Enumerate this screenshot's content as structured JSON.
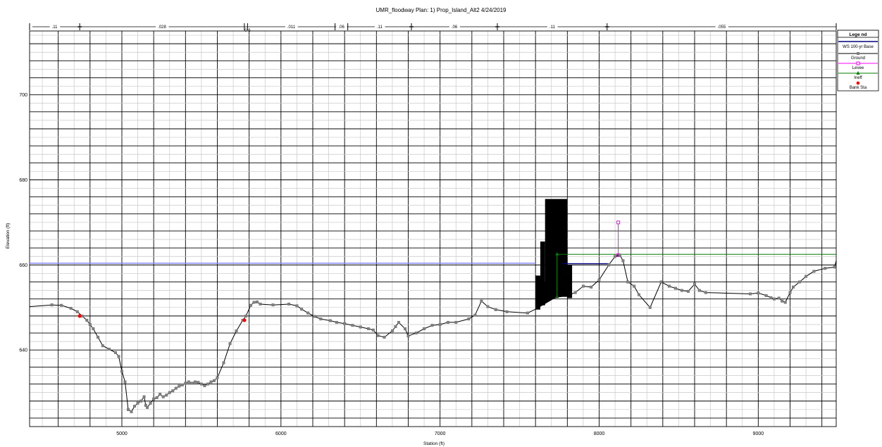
{
  "chart_data": {
    "type": "line",
    "title": "UMR_floodway      Plan:    1) Prop_Island_Alt2    4/24/2019",
    "xlabel": "Station (ft)",
    "ylabel": "Elevation (ft)",
    "xlim": [
      4420,
      9490
    ],
    "ylim": [
      622,
      715
    ],
    "x_ticks": [
      5000,
      6000,
      7000,
      8000,
      9000
    ],
    "y_ticks": [
      640,
      660,
      680,
      700
    ],
    "grid": true,
    "legend_title": "Lege nd",
    "legend_position": "top-right",
    "legend": [
      {
        "name": "WS 100-yr Base",
        "color": "#00007f",
        "marker": "none"
      },
      {
        "name": "Ground",
        "color": "#000000",
        "marker": "square"
      },
      {
        "name": "Levee",
        "color": "#ff00ff",
        "marker": "square-open"
      },
      {
        "name": "Ineff",
        "color": "#007f00",
        "marker": "triangle"
      },
      {
        "name": "Bank Sta",
        "color": "#ff0000",
        "marker": "circle"
      }
    ],
    "mannings": [
      {
        "label": ".11",
        "start": 4420,
        "end": 4735
      },
      {
        "label": ".028",
        "start": 4735,
        "end": 5770
      },
      {
        "label": ".011",
        "start": 5790,
        "end": 6340
      },
      {
        "label": ".06",
        "start": 6340,
        "end": 6420
      },
      {
        "label": ".11",
        "start": 6420,
        "end": 6820
      },
      {
        "label": ".06",
        "start": 6820,
        "end": 7360
      },
      {
        "label": ".11",
        "start": 7360,
        "end": 8050
      },
      {
        "label": ".055",
        "start": 8050,
        "end": 9490
      }
    ],
    "mannings_stub_label": "0\n6",
    "ground": {
      "x": [
        4420,
        4560,
        4620,
        4680,
        4720,
        4750,
        4780,
        4800,
        4820,
        4850,
        4880,
        4920,
        4960,
        4980,
        5000,
        5020,
        5040,
        5060,
        5080,
        5100,
        5120,
        5140,
        5150,
        5160,
        5180,
        5200,
        5220,
        5240,
        5260,
        5280,
        5300,
        5320,
        5340,
        5360,
        5380,
        5400,
        5420,
        5440,
        5460,
        5480,
        5500,
        5520,
        5540,
        5560,
        5580,
        5600,
        5640,
        5680,
        5720,
        5760,
        5780,
        5810,
        5830,
        5850,
        5870,
        5950,
        6050,
        6100,
        6130,
        6170,
        6210,
        6250,
        6310,
        6350,
        6400,
        6450,
        6500,
        6550,
        6580,
        6610,
        6650,
        6700,
        6720,
        6740,
        6780,
        6800,
        6850,
        6900,
        6950,
        7000,
        7050,
        7100,
        7180,
        7220,
        7260,
        7300,
        7350,
        7420,
        7550,
        7600,
        7630,
        7700,
        7750,
        7800,
        7850,
        7900,
        7950,
        8000,
        8060,
        8100,
        8130,
        8150,
        8180,
        8220,
        8250,
        8320,
        8390,
        8440,
        8480,
        8520,
        8560,
        8600,
        8630,
        8670,
        8950,
        9000,
        9050,
        9080,
        9100,
        9130,
        9150,
        9170,
        9200,
        9220,
        9260,
        9300,
        9350,
        9420,
        9480,
        9490
      ],
      "y": [
        650.2,
        650.6,
        650.5,
        649.8,
        649.0,
        648.0,
        647.0,
        646.0,
        645.0,
        643.0,
        641.0,
        640.2,
        639.4,
        638.5,
        635.0,
        632.5,
        626.0,
        625.5,
        626.8,
        627.5,
        628.0,
        629.0,
        627.0,
        626.5,
        627.5,
        628.5,
        628.8,
        629.6,
        629.0,
        629.4,
        630.0,
        630.4,
        631.0,
        631.5,
        631.8,
        632.2,
        632.5,
        632.2,
        632.5,
        632.4,
        632.0,
        631.6,
        632.0,
        632.5,
        632.8,
        633.5,
        637.0,
        641.5,
        644.5,
        647.0,
        648.0,
        650.5,
        651.2,
        651.3,
        650.8,
        650.6,
        650.8,
        650.4,
        649.6,
        648.7,
        647.9,
        647.3,
        646.9,
        646.5,
        646.2,
        645.8,
        645.4,
        645.0,
        644.7,
        643.4,
        643.0,
        644.5,
        645.5,
        646.5,
        645.0,
        643.3,
        644.0,
        645.0,
        645.8,
        646.0,
        646.5,
        646.5,
        647.3,
        648.2,
        651.5,
        650.2,
        649.5,
        649.0,
        648.7,
        649.6,
        650.5,
        652.0,
        652.5,
        652.8,
        653.5,
        655.0,
        654.8,
        656.5,
        660.0,
        662.0,
        662.3,
        661.0,
        656.0,
        655.0,
        653.0,
        650.0,
        656.0,
        655.0,
        654.5,
        654.0,
        653.8,
        655.5,
        654.0,
        653.5,
        653.2,
        653.4,
        652.8,
        652.3,
        652.0,
        652.2,
        651.5,
        651.2,
        653.5,
        654.8,
        656.0,
        657.3,
        658.5,
        659.2,
        659.5,
        661.0
      ]
    },
    "ws_base": {
      "segments": [
        {
          "x": [
            4420,
            7600
          ],
          "y": [
            660.4,
            660.4
          ],
          "color": "#7f7fff"
        },
        {
          "x": [
            7770,
            8060
          ],
          "y": [
            660.3,
            660.3
          ],
          "color": "#00007f"
        }
      ]
    },
    "levee": {
      "x": [
        8120,
        8120
      ],
      "y": [
        662.3,
        670.0
      ]
    },
    "ineff": [
      {
        "x": [
          7735,
          7735
        ],
        "y": [
          652.5,
          662.5
        ]
      },
      {
        "x": [
          7735,
          9490
        ],
        "y": [
          662.5,
          662.5
        ]
      }
    ],
    "bank_stations": [
      {
        "x": 4735,
        "y": 648.0
      },
      {
        "x": 5770,
        "y": 647.0
      }
    ],
    "obstruction": [
      {
        "x0": 7600,
        "x1": 7630,
        "y0": 649.5,
        "y1": 657.5
      },
      {
        "x0": 7630,
        "x1": 7660,
        "y0": 650.5,
        "y1": 665.5
      },
      {
        "x0": 7660,
        "x1": 7800,
        "y0": 652.5,
        "y1": 675.5
      },
      {
        "x0": 7800,
        "x1": 7830,
        "y0": 652.2,
        "y1": 660.0
      }
    ]
  }
}
